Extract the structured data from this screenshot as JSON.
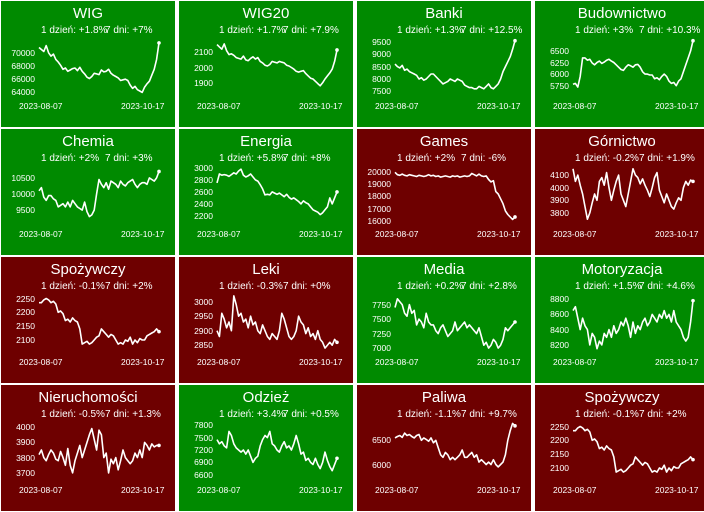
{
  "colors": {
    "up": "#008a00",
    "down": "#6e0000",
    "line": "#ffffff",
    "border": "#ffffff"
  },
  "chart_data": [
    {
      "type": "line",
      "title": "WIG",
      "day_change": "1 dzień: +1.8%",
      "week_change": "7 dni: +7%",
      "trend": "up",
      "x_start": "2023-08-07",
      "x_end": "2023-10-17",
      "yticks": [
        64000,
        66000,
        68000,
        70000
      ],
      "ylim": [
        63600,
        72400
      ],
      "values": [
        70800,
        70500,
        70200,
        71100,
        70000,
        69500,
        69800,
        69000,
        68600,
        68100,
        67500,
        67700,
        67200,
        67400,
        67600,
        67700,
        67300,
        67800,
        67200,
        66800,
        66300,
        66100,
        66400,
        66900,
        66800,
        66700,
        67400,
        67100,
        67200,
        67500,
        66900,
        66600,
        66400,
        66200,
        65800,
        65900,
        66000,
        65800,
        65100,
        64600,
        64900,
        64400,
        64200,
        64000,
        64800,
        65300,
        65700,
        66600,
        67500,
        69000,
        71500
      ]
    },
    {
      "type": "line",
      "title": "WIG20",
      "day_change": "1 dzień: +1.7%",
      "week_change": "7 dni: +7.9%",
      "trend": "up",
      "x_start": "2023-08-07",
      "x_end": "2023-10-17",
      "yticks": [
        1900,
        2000,
        2100
      ],
      "ylim": [
        1820,
        2200
      ],
      "values": [
        2150,
        2135,
        2120,
        2155,
        2110,
        2085,
        2090,
        2080,
        2065,
        2060,
        2055,
        2075,
        2050,
        2045,
        2060,
        2070,
        2055,
        2065,
        2040,
        2030,
        2015,
        2010,
        2020,
        2040,
        2035,
        2030,
        2040,
        2035,
        2030,
        2015,
        2010,
        2000,
        1990,
        1975,
        1970,
        1975,
        1980,
        1960,
        1945,
        1930,
        1925,
        1910,
        1895,
        1880,
        1900,
        1925,
        1945,
        1965,
        1990,
        2040,
        2115
      ]
    },
    {
      "type": "line",
      "title": "Banki",
      "day_change": "1 dzień: +1.3%",
      "week_change": "7 dni: +12.5%",
      "trend": "up",
      "x_start": "2023-08-07",
      "x_end": "2023-10-17",
      "yticks": [
        7500,
        8000,
        8500,
        9000,
        9500
      ],
      "ylim": [
        7350,
        9700
      ],
      "values": [
        8600,
        8500,
        8450,
        8550,
        8350,
        8400,
        8300,
        8250,
        8200,
        8150,
        8000,
        8050,
        7950,
        8000,
        8100,
        8200,
        8200,
        8100,
        8000,
        7900,
        7800,
        7850,
        7900,
        8000,
        7950,
        7900,
        8000,
        7950,
        7900,
        7750,
        7700,
        7650,
        7650,
        7600,
        7600,
        7700,
        7650,
        7600,
        7700,
        7800,
        7650,
        7600,
        7700,
        7800,
        8000,
        8300,
        8500,
        8700,
        8900,
        9200,
        9550
      ]
    },
    {
      "type": "line",
      "title": "Budownictwo",
      "day_change": "1 dzień: +3%",
      "week_change": "7 dni: +10.3%",
      "trend": "up",
      "x_start": "2023-08-07",
      "x_end": "2023-10-17",
      "yticks": [
        5750,
        6000,
        6250,
        6500
      ],
      "ylim": [
        5550,
        6800
      ],
      "values": [
        5780,
        5800,
        5720,
        5950,
        6350,
        6350,
        6300,
        6320,
        6240,
        6200,
        6250,
        6280,
        6230,
        6260,
        6300,
        6320,
        6280,
        6250,
        6200,
        6150,
        6100,
        6080,
        6150,
        6200,
        6180,
        6150,
        6200,
        6210,
        6150,
        6050,
        6000,
        6000,
        5980,
        5980,
        5900,
        5920,
        5880,
        5950,
        6000,
        5950,
        5850,
        5800,
        5820,
        5750,
        5850,
        5900,
        6050,
        6200,
        6350,
        6500,
        6720
      ]
    },
    {
      "type": "line",
      "title": "Chemia",
      "day_change": "1 dzień: +2%",
      "week_change": "7 dni: +3%",
      "trend": "up",
      "x_start": "2023-08-07",
      "x_end": "2023-10-17",
      "yticks": [
        9500,
        10000,
        10500
      ],
      "ylim": [
        9100,
        10900
      ],
      "values": [
        10100,
        10200,
        9900,
        9800,
        9950,
        9950,
        9850,
        9800,
        9600,
        9650,
        9700,
        9600,
        9750,
        9600,
        9800,
        9700,
        9600,
        9550,
        9500,
        9750,
        9450,
        9300,
        9350,
        9500,
        10000,
        10450,
        10300,
        10200,
        10350,
        10150,
        10400,
        10350,
        10300,
        10200,
        10400,
        10300,
        10250,
        10350,
        10400,
        10450,
        10300,
        10200,
        10300,
        10350,
        10350,
        10300,
        10500,
        10450,
        10400,
        10500,
        10700
      ]
    },
    {
      "type": "line",
      "title": "Energia",
      "day_change": "1 dzień: +5.8%",
      "week_change": "7 dni: +8%",
      "trend": "up",
      "x_start": "2023-08-07",
      "x_end": "2023-10-17",
      "yticks": [
        2200,
        2400,
        2600,
        2800,
        3000
      ],
      "ylim": [
        2080,
        3050
      ],
      "values": [
        2750,
        2900,
        2880,
        2890,
        2880,
        2860,
        2890,
        2920,
        2900,
        2950,
        2980,
        2880,
        2850,
        2870,
        2900,
        2850,
        2800,
        2780,
        2720,
        2650,
        2550,
        2560,
        2550,
        2600,
        2580,
        2560,
        2580,
        2550,
        2520,
        2560,
        2510,
        2480,
        2500,
        2470,
        2440,
        2400,
        2450,
        2420,
        2400,
        2350,
        2300,
        2280,
        2260,
        2220,
        2250,
        2300,
        2350,
        2500,
        2400,
        2500,
        2600
      ]
    },
    {
      "type": "line",
      "title": "Games",
      "day_change": "1 dzień: +2%",
      "week_change": "7 dni: -6%",
      "trend": "down",
      "x_start": "2023-08-07",
      "x_end": "2023-10-17",
      "yticks": [
        16000,
        17000,
        18000,
        19000,
        20000
      ],
      "ylim": [
        15800,
        20600
      ],
      "values": [
        20000,
        19800,
        19750,
        19850,
        19750,
        19700,
        19800,
        19750,
        19700,
        19650,
        19750,
        19700,
        19650,
        19700,
        19800,
        19700,
        19750,
        19650,
        19700,
        19600,
        19650,
        19700,
        19650,
        19600,
        19700,
        19650,
        19700,
        19600,
        19650,
        19700,
        19650,
        19700,
        19900,
        19800,
        19700,
        19850,
        19700,
        19650,
        19700,
        19400,
        19200,
        19300,
        18400,
        18200,
        17800,
        17400,
        16800,
        16500,
        16300,
        16100,
        16300
      ]
    },
    {
      "type": "line",
      "title": "Górnictwo",
      "day_change": "1 dzień: -0.2%",
      "week_change": "7 dni: +1.9%",
      "trend": "down",
      "x_start": "2023-08-07",
      "x_end": "2023-10-17",
      "yticks": [
        3800,
        3900,
        4000,
        4100
      ],
      "ylim": [
        3720,
        4180
      ],
      "values": [
        4150,
        4050,
        4100,
        4020,
        3950,
        3850,
        3750,
        3800,
        3880,
        3950,
        3900,
        4050,
        4080,
        4020,
        4120,
        4000,
        3900,
        3980,
        4050,
        4100,
        3950,
        3900,
        3850,
        3950,
        4050,
        4150,
        4100,
        4080,
        4030,
        4070,
        4020,
        3980,
        3930,
        4000,
        4080,
        4120,
        3980,
        3930,
        3880,
        3950,
        3900,
        3850,
        3830,
        3880,
        3920,
        3900,
        4000,
        4050,
        4020,
        4060,
        4050
      ]
    },
    {
      "type": "line",
      "title": "Spożywczy",
      "day_change": "1 dzień: -0.1%",
      "week_change": "7 dni: +2%",
      "trend": "down",
      "x_start": "2023-08-07",
      "x_end": "2023-10-17",
      "yticks": [
        2100,
        2150,
        2200,
        2250
      ],
      "ylim": [
        2060,
        2270
      ],
      "values": [
        2235,
        2235,
        2245,
        2250,
        2245,
        2235,
        2240,
        2230,
        2200,
        2205,
        2195,
        2170,
        2175,
        2165,
        2180,
        2170,
        2165,
        2140,
        2085,
        2090,
        2095,
        2085,
        2090,
        2100,
        2110,
        2115,
        2140,
        2130,
        2120,
        2110,
        2120,
        2115,
        2100,
        2085,
        2090,
        2085,
        2100,
        2095,
        2110,
        2085,
        2100,
        2090,
        2105,
        2100,
        2100,
        2115,
        2120,
        2125,
        2130,
        2140,
        2130
      ]
    },
    {
      "type": "line",
      "title": "Leki",
      "day_change": "1 dzień: -0.3%",
      "week_change": "7 dni: +0%",
      "trend": "down",
      "x_start": "2023-08-07",
      "x_end": "2023-10-17",
      "yticks": [
        2850,
        2900,
        2950,
        3000
      ],
      "ylim": [
        2830,
        3030
      ],
      "values": [
        2900,
        2880,
        2960,
        2940,
        2910,
        2930,
        2900,
        3020,
        2990,
        2950,
        2960,
        2930,
        2940,
        2910,
        2950,
        2920,
        2930,
        2900,
        2890,
        2920,
        2900,
        2880,
        2870,
        2890,
        2880,
        2870,
        2900,
        2960,
        2940,
        2910,
        2880,
        2870,
        2880,
        2900,
        2950,
        2930,
        2920,
        2890,
        2910,
        2880,
        2890,
        2870,
        2900,
        2870,
        2860,
        2840,
        2850,
        2860,
        2850,
        2870,
        2860
      ]
    },
    {
      "type": "line",
      "title": "Media",
      "day_change": "1 dzień: +0.2%",
      "week_change": "7 dni: +2.8%",
      "trend": "up",
      "x_start": "2023-08-07",
      "x_end": "2023-10-17",
      "yticks": [
        7000,
        7250,
        7500,
        7750
      ],
      "ylim": [
        6950,
        7950
      ],
      "values": [
        7700,
        7850,
        7800,
        7750,
        7600,
        7550,
        7750,
        7600,
        7650,
        7400,
        7500,
        7450,
        7350,
        7600,
        7450,
        7400,
        7400,
        7300,
        7250,
        7350,
        7400,
        7300,
        7200,
        7250,
        7300,
        7450,
        7300,
        7350,
        7400,
        7450,
        7350,
        7400,
        7350,
        7300,
        7250,
        7350,
        7200,
        7050,
        7100,
        7000,
        7050,
        7150,
        7100,
        7000,
        7050,
        7150,
        7350,
        7300,
        7350,
        7400,
        7450
      ]
    },
    {
      "type": "line",
      "title": "Motoryzacja",
      "day_change": "1 dzień: +1.5%",
      "week_change": "7 dni: +4.6%",
      "trend": "up",
      "x_start": "2023-08-07",
      "x_end": "2023-10-17",
      "yticks": [
        8200,
        8400,
        8600,
        8800
      ],
      "ylim": [
        8120,
        8880
      ],
      "values": [
        8650,
        8700,
        8550,
        8400,
        8550,
        8450,
        8400,
        8200,
        8350,
        8300,
        8150,
        8250,
        8200,
        8350,
        8300,
        8400,
        8300,
        8450,
        8350,
        8400,
        8500,
        8450,
        8550,
        8450,
        8300,
        8500,
        8350,
        8450,
        8400,
        8500,
        8550,
        8450,
        8500,
        8600,
        8550,
        8500,
        8600,
        8550,
        8650,
        8550,
        8600,
        8500,
        8650,
        8500,
        8450,
        8400,
        8300,
        8250,
        8300,
        8500,
        8780
      ]
    },
    {
      "type": "line",
      "title": "Nieruchomości",
      "day_change": "1 dzień: -0.5%",
      "week_change": "7 dni: +1.3%",
      "trend": "down",
      "x_start": "2023-08-07",
      "x_end": "2023-10-17",
      "yticks": [
        3700,
        3800,
        3900,
        4000
      ],
      "ylim": [
        3660,
        4040
      ],
      "values": [
        3820,
        3850,
        3800,
        3780,
        3820,
        3850,
        3830,
        3790,
        3780,
        3840,
        3800,
        3750,
        3860,
        3750,
        3700,
        3780,
        3830,
        3880,
        3800,
        3850,
        3900,
        3950,
        3990,
        3920,
        3850,
        3980,
        3950,
        3800,
        3830,
        3700,
        3790,
        3760,
        3800,
        3720,
        3780,
        3850,
        3800,
        3780,
        3760,
        3780,
        3830,
        3800,
        3850,
        3800,
        3900,
        3880,
        3850,
        3890,
        3870,
        3880,
        3880
      ]
    },
    {
      "type": "line",
      "title": "Odzież",
      "day_change": "1 dzień: +3.4%",
      "week_change": "7 dni: +0.5%",
      "trend": "up",
      "x_start": "2023-08-07",
      "x_end": "2023-10-17",
      "yticks": [
        6600,
        6900,
        7200,
        7500,
        7800
      ],
      "ylim": [
        6500,
        7900
      ],
      "values": [
        7450,
        7350,
        7400,
        7300,
        7250,
        7650,
        7550,
        7350,
        7250,
        7200,
        7150,
        7200,
        7100,
        7200,
        7050,
        6900,
        7000,
        7050,
        7300,
        7450,
        7550,
        7500,
        7650,
        7350,
        7300,
        7200,
        7150,
        7300,
        7400,
        7250,
        7300,
        7200,
        7350,
        7550,
        7350,
        7100,
        7150,
        6950,
        7000,
        6900,
        6850,
        7000,
        6850,
        6750,
        6900,
        7150,
        6950,
        6800,
        6700,
        6850,
        7000
      ]
    },
    {
      "type": "line",
      "title": "Paliwa",
      "day_change": "1 dzień: -1.1%",
      "week_change": "7 dni: +9.7%",
      "trend": "down",
      "x_start": "2023-08-07",
      "x_end": "2023-10-17",
      "yticks": [
        6000,
        6500
      ],
      "ylim": [
        5700,
        6900
      ],
      "values": [
        6550,
        6580,
        6600,
        6560,
        6650,
        6600,
        6620,
        6580,
        6550,
        6600,
        6620,
        6500,
        6550,
        6520,
        6480,
        6550,
        6450,
        6500,
        6350,
        6200,
        6150,
        6250,
        6200,
        6100,
        6150,
        6100,
        6150,
        6200,
        6300,
        6150,
        6150,
        6200,
        6250,
        6150,
        6200,
        6050,
        6100,
        6050,
        6000,
        6050,
        6000,
        6100,
        6000,
        5950,
        6000,
        6050,
        6200,
        6500,
        6700,
        6850,
        6800
      ]
    },
    {
      "type": "line",
      "title": "Spożywczy",
      "day_change": "1 dzień: -0.1%",
      "week_change": "7 dni: +2%",
      "trend": "down",
      "x_start": "2023-08-07",
      "x_end": "2023-10-17",
      "yticks": [
        2100,
        2150,
        2200,
        2250
      ],
      "ylim": [
        2060,
        2270
      ],
      "values": [
        2235,
        2235,
        2245,
        2250,
        2245,
        2235,
        2240,
        2230,
        2200,
        2205,
        2195,
        2170,
        2175,
        2165,
        2180,
        2170,
        2165,
        2140,
        2085,
        2090,
        2095,
        2085,
        2090,
        2100,
        2110,
        2115,
        2140,
        2130,
        2120,
        2110,
        2120,
        2115,
        2100,
        2085,
        2090,
        2085,
        2100,
        2095,
        2110,
        2085,
        2100,
        2090,
        2105,
        2100,
        2100,
        2115,
        2120,
        2125,
        2130,
        2140,
        2130
      ]
    }
  ]
}
